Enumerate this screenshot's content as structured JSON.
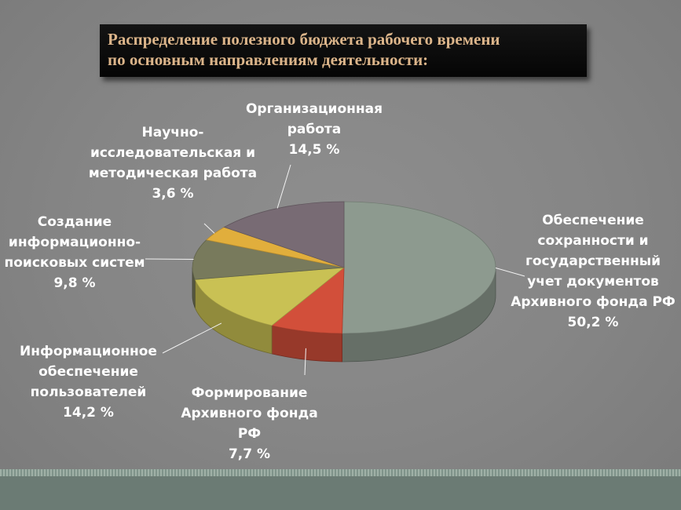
{
  "title": {
    "line1": "Распределение полезного бюджета рабочего времени",
    "line2": "по основным направлениям деятельности:"
  },
  "chart_data": {
    "type": "pie",
    "title": "Распределение полезного бюджета рабочего времени по основным направлениям деятельности:",
    "slices": [
      {
        "label": "Обеспечение сохранности и государственный учет документов Архивного фонда РФ",
        "value": 50.2,
        "value_text": "50,2 %",
        "color": "#8d9a8f"
      },
      {
        "label": "Формирование Архивного фонда РФ",
        "value": 7.7,
        "value_text": "7,7 %",
        "color": "#d24f3a"
      },
      {
        "label": "Информационное обеспечение пользователей",
        "value": 14.2,
        "value_text": "14,2 %",
        "color": "#c9c154"
      },
      {
        "label": "Создание информационно-поисковых систем",
        "value": 9.8,
        "value_text": "9,8 %",
        "color": "#787a5c"
      },
      {
        "label": "Научно-исследовательская и методическая работа",
        "value": 3.6,
        "value_text": "3,6 %",
        "color": "#e1ae3c"
      },
      {
        "label": "Организационная работа",
        "value": 14.5,
        "value_text": "14,5 %",
        "color": "#786b74"
      }
    ]
  },
  "labels": {
    "arch_fund": {
      "lines": [
        "Обеспечение",
        "сохранности и",
        "государственный",
        "учет документов",
        "Архивного фонда РФ"
      ],
      "value": "50,2 %"
    },
    "forming": {
      "lines": [
        "Формирование",
        "Архивного фонда",
        "РФ"
      ],
      "value": "7,7 %"
    },
    "users": {
      "lines": [
        "Информационное",
        "обеспечение",
        "пользователей"
      ],
      "value": "14,2 %"
    },
    "ips": {
      "lines": [
        "Создание",
        "информационно-",
        "поисковых систем"
      ],
      "value": "9,8 %"
    },
    "research": {
      "lines": [
        "Научно-",
        "исследовательская и",
        "методическая работа"
      ],
      "value": "3,6 %"
    },
    "org": {
      "lines": [
        "Организационная",
        "работа"
      ],
      "value": "14,5 %"
    }
  }
}
